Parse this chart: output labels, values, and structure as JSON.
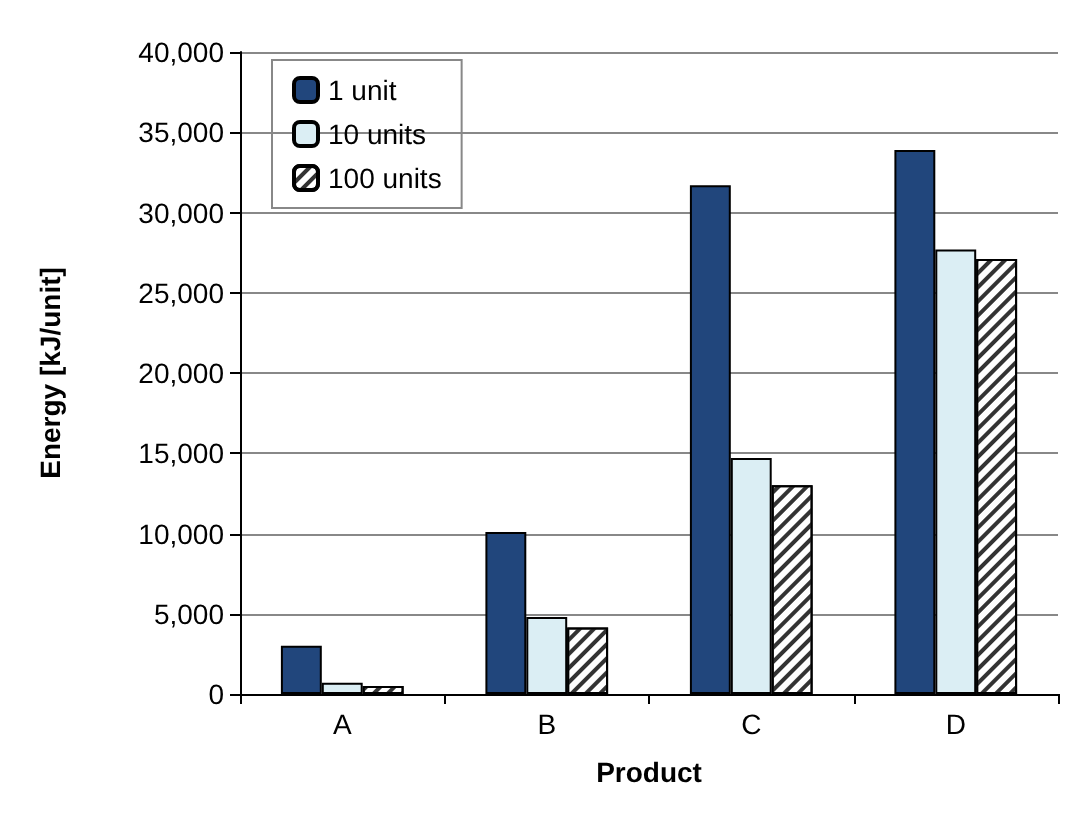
{
  "chart_data": {
    "type": "bar",
    "xlabel": "Product",
    "ylabel": "Energy [kJ/unit]",
    "categories": [
      "A",
      "B",
      "C",
      "D"
    ],
    "series": [
      {
        "name": "1 unit",
        "color": "#21467c",
        "values": [
          3000,
          10100,
          31700,
          33900
        ]
      },
      {
        "name": "10 units",
        "color": "#dbeef4",
        "values": [
          700,
          4800,
          14700,
          27700
        ]
      },
      {
        "name": "100 units",
        "color": "#ffffff",
        "values": [
          500,
          4150,
          13000,
          27100
        ]
      }
    ],
    "ylim": [
      0,
      40000
    ],
    "yticks": [
      {
        "value": 0,
        "label": "0"
      },
      {
        "value": 5000,
        "label": "5,000"
      },
      {
        "value": 10000,
        "label": "10,000"
      },
      {
        "value": 15000,
        "label": "15,000"
      },
      {
        "value": 20000,
        "label": "20,000"
      },
      {
        "value": 25000,
        "label": "25,000"
      },
      {
        "value": 30000,
        "label": "30,000"
      },
      {
        "value": 35000,
        "label": "35,000"
      },
      {
        "value": 40000,
        "label": "40,000"
      }
    ],
    "grid": "y",
    "legend": "top left"
  }
}
